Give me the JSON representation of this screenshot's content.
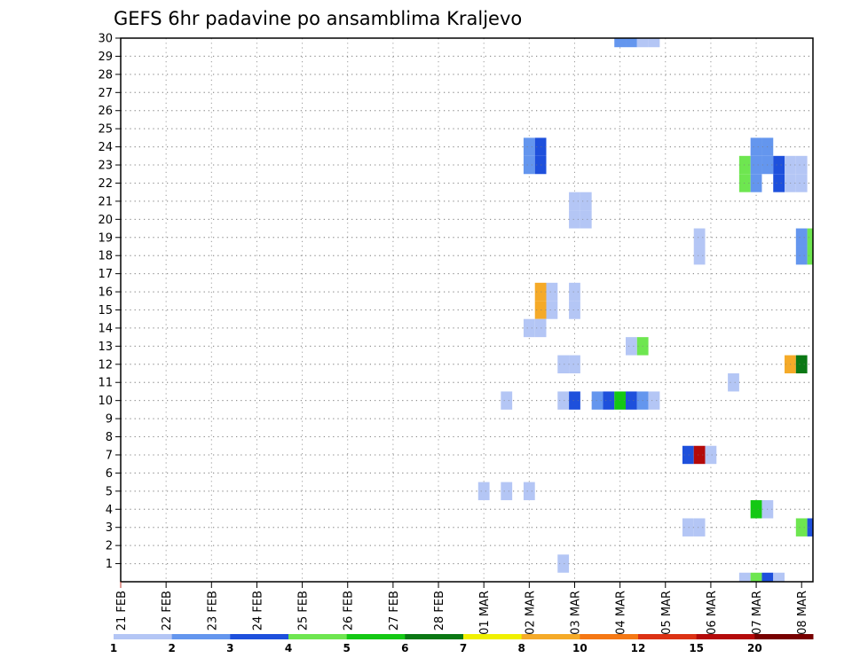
{
  "chart_data": {
    "type": "heatmap",
    "title": "GEFS 6hr padavine po ansamblima Kraljevo",
    "xlabel": "",
    "ylabel": "",
    "x_ticks": [
      "21 FEB",
      "22 FEB",
      "23 FEB",
      "24 FEB",
      "25 FEB",
      "26 FEB",
      "27 FEB",
      "28 FEB",
      "01 MAR",
      "02 MAR",
      "03 MAR",
      "04 MAR",
      "05 MAR",
      "06 MAR",
      "07 MAR",
      "08 MAR"
    ],
    "y_ticks": [
      1,
      2,
      3,
      4,
      5,
      6,
      7,
      8,
      9,
      10,
      11,
      12,
      13,
      14,
      15,
      16,
      17,
      18,
      19,
      20,
      21,
      22,
      23,
      24,
      25,
      26,
      27,
      28,
      29,
      30
    ],
    "x_unit": "days since 21 FEB 00Z",
    "y_unit": "ensemble member",
    "xlim": [
      0,
      15.25
    ],
    "ylim": [
      0,
      30
    ],
    "grid": true,
    "legend": {
      "position": "bottom",
      "labels": [
        "1",
        "2",
        "3",
        "4",
        "5",
        "6",
        "7",
        "8",
        "10",
        "12",
        "15",
        "20"
      ],
      "colors": [
        "#b4c6f5",
        "#6496ee",
        "#1e50dc",
        "#6ee650",
        "#14c814",
        "#0a7814",
        "#f0f000",
        "#f5aa28",
        "#f57814",
        "#dc3214",
        "#b40a0a",
        "#780000"
      ]
    },
    "cells": [
      {
        "member": 30,
        "day": 11.0,
        "class": 2
      },
      {
        "member": 30,
        "day": 11.25,
        "class": 2
      },
      {
        "member": 30,
        "day": 11.5,
        "class": 1
      },
      {
        "member": 30,
        "day": 11.75,
        "class": 1
      },
      {
        "member": 24,
        "day": 9.0,
        "class": 2
      },
      {
        "member": 24,
        "day": 9.25,
        "class": 3
      },
      {
        "member": 24,
        "day": 14.0,
        "class": 2
      },
      {
        "member": 24,
        "day": 14.25,
        "class": 2
      },
      {
        "member": 23,
        "day": 9.0,
        "class": 2
      },
      {
        "member": 23,
        "day": 9.25,
        "class": 3
      },
      {
        "member": 23,
        "day": 13.75,
        "class": 4
      },
      {
        "member": 23,
        "day": 14.0,
        "class": 2
      },
      {
        "member": 23,
        "day": 14.25,
        "class": 2
      },
      {
        "member": 23,
        "day": 14.5,
        "class": 3
      },
      {
        "member": 23,
        "day": 14.75,
        "class": 1
      },
      {
        "member": 23,
        "day": 15.0,
        "class": 1
      },
      {
        "member": 22,
        "day": 13.75,
        "class": 4
      },
      {
        "member": 22,
        "day": 14.0,
        "class": 2
      },
      {
        "member": 22,
        "day": 14.5,
        "class": 3
      },
      {
        "member": 22,
        "day": 14.75,
        "class": 1
      },
      {
        "member": 22,
        "day": 15.0,
        "class": 1
      },
      {
        "member": 21,
        "day": 10.0,
        "class": 1
      },
      {
        "member": 21,
        "day": 10.25,
        "class": 1
      },
      {
        "member": 20,
        "day": 10.0,
        "class": 1
      },
      {
        "member": 20,
        "day": 10.25,
        "class": 1
      },
      {
        "member": 19,
        "day": 12.75,
        "class": 1
      },
      {
        "member": 19,
        "day": 15.0,
        "class": 2
      },
      {
        "member": 19,
        "day": 15.25,
        "class": 4
      },
      {
        "member": 18,
        "day": 12.75,
        "class": 1
      },
      {
        "member": 18,
        "day": 15.0,
        "class": 2
      },
      {
        "member": 18,
        "day": 15.25,
        "class": 4
      },
      {
        "member": 16,
        "day": 9.25,
        "class": 8
      },
      {
        "member": 16,
        "day": 9.5,
        "class": 1
      },
      {
        "member": 16,
        "day": 10.0,
        "class": 1
      },
      {
        "member": 15,
        "day": 9.25,
        "class": 8
      },
      {
        "member": 15,
        "day": 9.5,
        "class": 1
      },
      {
        "member": 15,
        "day": 10.0,
        "class": 1
      },
      {
        "member": 14,
        "day": 9.0,
        "class": 1
      },
      {
        "member": 14,
        "day": 9.25,
        "class": 1
      },
      {
        "member": 13,
        "day": 11.25,
        "class": 1
      },
      {
        "member": 13,
        "day": 11.5,
        "class": 4
      },
      {
        "member": 12,
        "day": 9.75,
        "class": 1
      },
      {
        "member": 12,
        "day": 10.0,
        "class": 1
      },
      {
        "member": 12,
        "day": 14.75,
        "class": 8
      },
      {
        "member": 12,
        "day": 15.0,
        "class": 6
      },
      {
        "member": 11,
        "day": 13.5,
        "class": 1
      },
      {
        "member": 10,
        "day": 8.5,
        "class": 1
      },
      {
        "member": 10,
        "day": 9.75,
        "class": 1
      },
      {
        "member": 10,
        "day": 10.0,
        "class": 3
      },
      {
        "member": 10,
        "day": 10.5,
        "class": 2
      },
      {
        "member": 10,
        "day": 10.75,
        "class": 3
      },
      {
        "member": 10,
        "day": 11.0,
        "class": 5
      },
      {
        "member": 10,
        "day": 11.25,
        "class": 3
      },
      {
        "member": 10,
        "day": 11.5,
        "class": 2
      },
      {
        "member": 10,
        "day": 11.75,
        "class": 1
      },
      {
        "member": 7,
        "day": 12.5,
        "class": 3
      },
      {
        "member": 7,
        "day": 12.75,
        "class": 11
      },
      {
        "member": 7,
        "day": 13.0,
        "class": 1
      },
      {
        "member": 5,
        "day": 8.0,
        "class": 1
      },
      {
        "member": 5,
        "day": 8.5,
        "class": 1
      },
      {
        "member": 5,
        "day": 9.0,
        "class": 1
      },
      {
        "member": 4,
        "day": 14.0,
        "class": 5
      },
      {
        "member": 4,
        "day": 14.25,
        "class": 1
      },
      {
        "member": 3,
        "day": 12.5,
        "class": 1
      },
      {
        "member": 3,
        "day": 12.75,
        "class": 1
      },
      {
        "member": 3,
        "day": 15.0,
        "class": 4
      },
      {
        "member": 3,
        "day": 15.25,
        "class": 3
      },
      {
        "member": 1,
        "day": 9.75,
        "class": 1
      },
      {
        "member": 0,
        "day": 13.75,
        "class": 1
      },
      {
        "member": 0,
        "day": 14.0,
        "class": 4
      },
      {
        "member": 0,
        "day": 14.25,
        "class": 3
      },
      {
        "member": 0,
        "day": 14.5,
        "class": 1
      }
    ]
  }
}
